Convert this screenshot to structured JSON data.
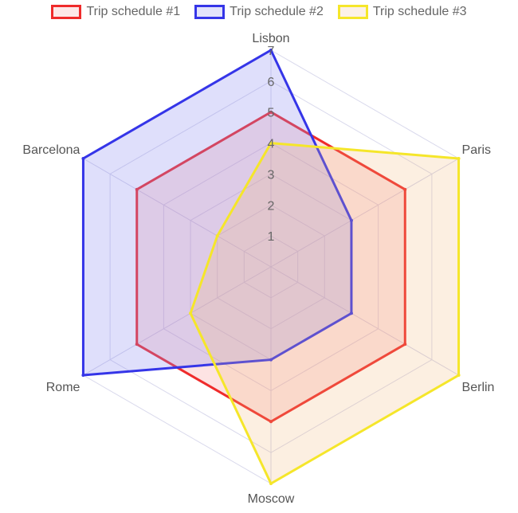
{
  "chart_data": {
    "type": "radar",
    "axes": [
      "Lisbon",
      "Paris",
      "Berlin",
      "Moscow",
      "Rome",
      "Barcelona"
    ],
    "r_range": [
      0,
      7
    ],
    "ticks": [
      1,
      2,
      3,
      4,
      5,
      6,
      7
    ],
    "grid": true,
    "legend_position": "top",
    "series": [
      {
        "name": "Trip schedule #1",
        "values": [
          5,
          5,
          5,
          5,
          5,
          5
        ],
        "stroke": "#ef2b2b",
        "fill": "rgba(244,128,128,0.22)"
      },
      {
        "name": "Trip schedule #2",
        "values": [
          7,
          3,
          3,
          3,
          7,
          7
        ],
        "stroke": "#3535e8",
        "fill": "rgba(140,140,240,0.28)"
      },
      {
        "name": "Trip schedule #3",
        "values": [
          4,
          7,
          7,
          7,
          3,
          2
        ],
        "stroke": "#f5e62a",
        "fill": "rgba(240,180,120,0.22)"
      }
    ]
  }
}
